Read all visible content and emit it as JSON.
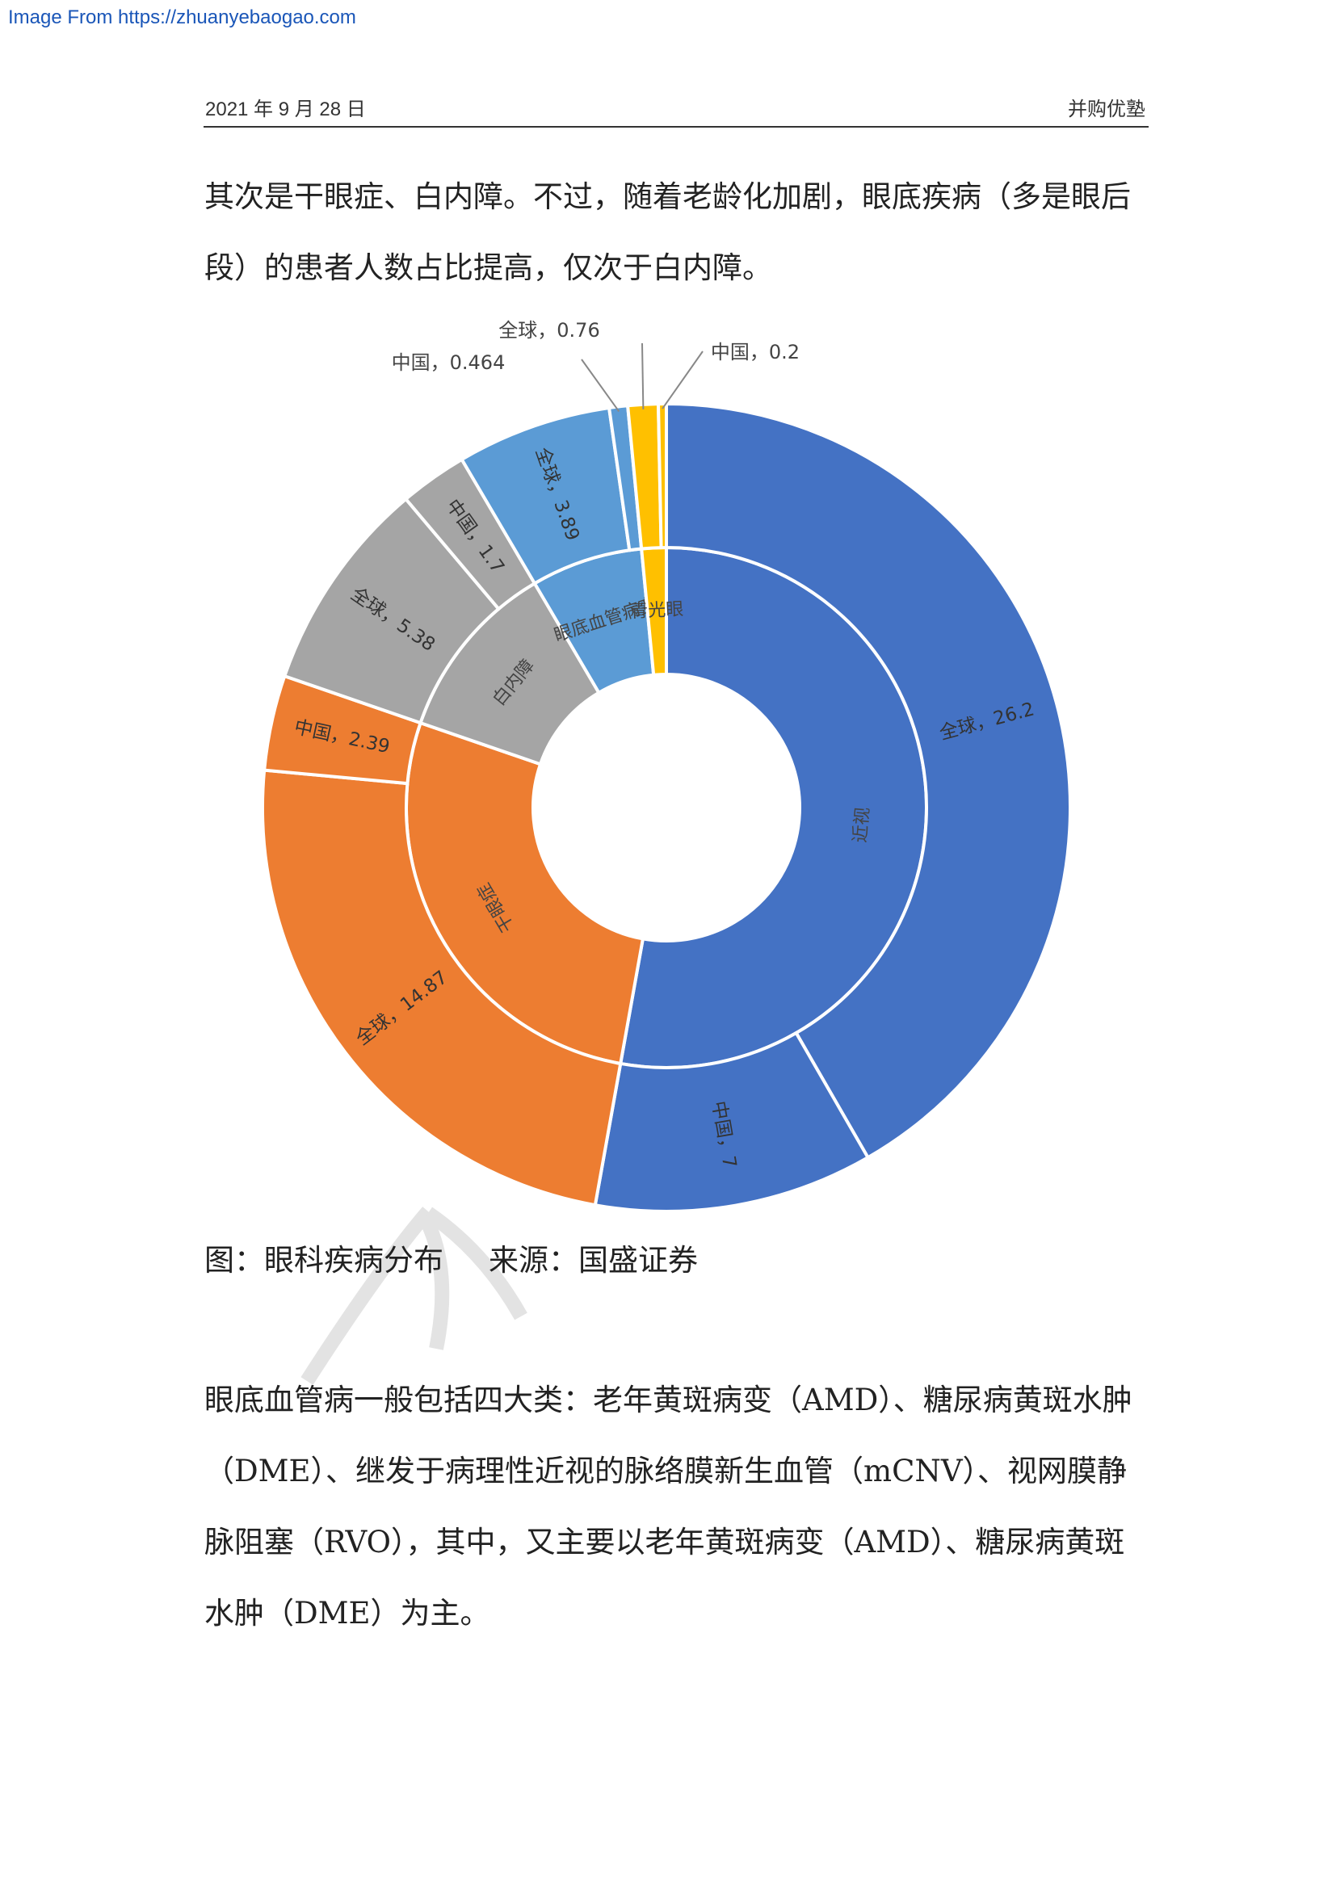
{
  "source_banner": "Image From https://zhuanyebaogao.com",
  "header": {
    "date": "2021 年 9 月 28 日",
    "brand": "并购优塾"
  },
  "paragraph_1": "其次是干眼症、白内障。不过，随着老龄化加剧，眼底疾病（多是眼后段）的患者人数占比提高，仅次于白内障。",
  "caption": {
    "figure": "图：眼科疾病分布",
    "source": "来源：国盛证券"
  },
  "paragraph_2": "眼底血管病一般包括四大类：老年黄斑病变（AMD）、糖尿病黄斑水肿（DME）、继发于病理性近视的脉络膜新生血管（mCNV）、视网膜静脉阻塞（RVO），其中，又主要以老年黄斑病变（AMD）、糖尿病黄斑水肿（DME）为主。",
  "colors": {
    "myopia": "#4472c4",
    "dry_eye": "#ed7d31",
    "cataract": "#a5a5a5",
    "fundus": "#5b9bd5",
    "glaucoma": "#ffc000",
    "watermark": "#e3e3e3"
  },
  "chart_data": {
    "type": "sunburst",
    "title": "",
    "inner": [
      {
        "name": "近视",
        "value": 33.2,
        "color_key": "myopia"
      },
      {
        "name": "干眼症",
        "value": 17.26,
        "color_key": "dry_eye"
      },
      {
        "name": "白内障",
        "value": 7.08,
        "color_key": "cataract"
      },
      {
        "name": "眼底血管病变",
        "value": 4.354,
        "color_key": "fundus"
      },
      {
        "name": "青光眼",
        "value": 0.96,
        "color_key": "glaucoma"
      }
    ],
    "outer": [
      {
        "parent": "近视",
        "label": "全球，26.2",
        "value": 26.2,
        "callout": false
      },
      {
        "parent": "近视",
        "label": "中国，7",
        "value": 7,
        "callout": false
      },
      {
        "parent": "干眼症",
        "label": "全球，14.87",
        "value": 14.87,
        "callout": false
      },
      {
        "parent": "干眼症",
        "label": "中国，2.39",
        "value": 2.39,
        "callout": false
      },
      {
        "parent": "白内障",
        "label": "全球，5.38",
        "value": 5.38,
        "callout": false
      },
      {
        "parent": "白内障",
        "label": "中国，1.7",
        "value": 1.7,
        "callout": false
      },
      {
        "parent": "眼底血管病变",
        "label": "全球，3.89",
        "value": 3.89,
        "callout": false
      },
      {
        "parent": "眼底血管病变",
        "label": "中国，0.464",
        "value": 0.464,
        "callout": true
      },
      {
        "parent": "青光眼",
        "label": "全球，0.76",
        "value": 0.76,
        "callout": true
      },
      {
        "parent": "青光眼",
        "label": "中国，0.2",
        "value": 0.2,
        "callout": true
      }
    ]
  }
}
